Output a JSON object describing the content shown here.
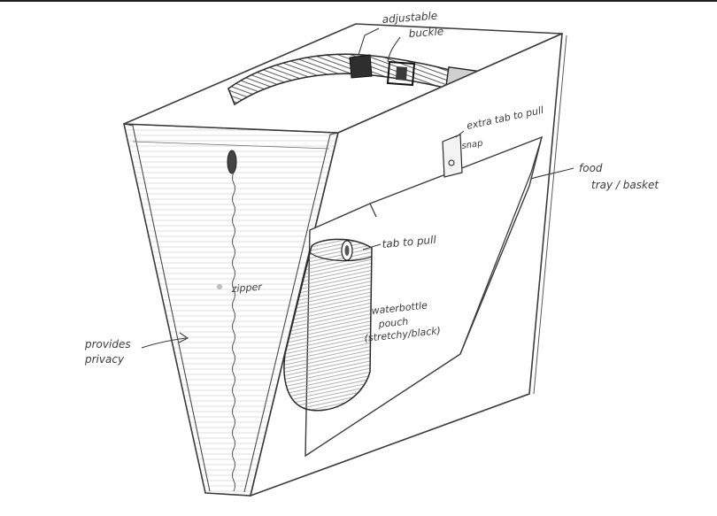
{
  "annotations": {
    "adjustable": "adjustable",
    "buckle": "buckle",
    "extra_tab_to_pull": "extra tab to pull",
    "snap": "snap",
    "food_tray_line1": "food",
    "food_tray_line2": "tray / basket",
    "tab_to_pull": "tab to pull",
    "waterbottle_line1": "waterbottle",
    "waterbottle_line2": "pouch",
    "waterbottle_line3": "(stretchy/black)",
    "zipper": "zipper",
    "provides_line1": "provides",
    "provides_line2": "privacy"
  },
  "colors": {
    "ink": "#3b3b3b",
    "shade": "#9a9a9a",
    "paper": "#ffffff",
    "rule": "#1e1e1e"
  }
}
